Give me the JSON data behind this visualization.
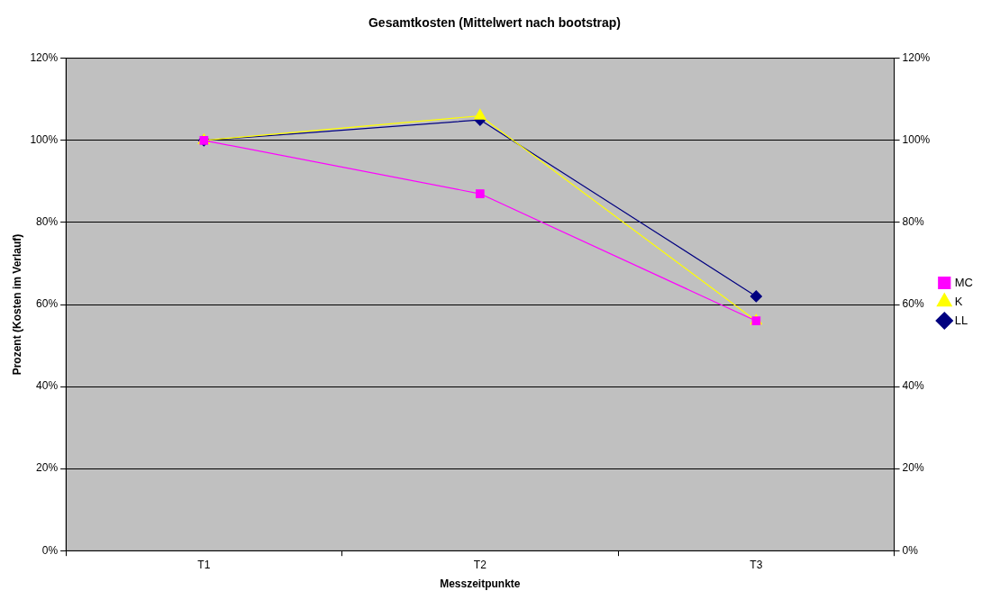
{
  "chart_data": {
    "type": "line",
    "title": "Gesamtkosten (Mittelwert nach bootstrap)",
    "xlabel": "Messzeitpunkte",
    "ylabel": "Prozent (Kosten im Verlauf)",
    "categories": [
      "T1",
      "T2",
      "T3"
    ],
    "series": [
      {
        "name": "MC",
        "color": "#ff00ff",
        "marker": "square",
        "values": [
          100,
          87,
          56
        ]
      },
      {
        "name": "K",
        "color": "#ffff00",
        "marker": "triangle",
        "values": [
          100,
          106,
          56
        ]
      },
      {
        "name": "LL",
        "color": "#000080",
        "marker": "diamond",
        "values": [
          100,
          105,
          62
        ]
      }
    ],
    "ylim": [
      0,
      120
    ],
    "yticks": [
      {
        "value": 0,
        "label": "0%"
      },
      {
        "value": 20,
        "label": "20%"
      },
      {
        "value": 40,
        "label": "40%"
      },
      {
        "value": 60,
        "label": "60%"
      },
      {
        "value": 80,
        "label": "80%"
      },
      {
        "value": 100,
        "label": "100%"
      },
      {
        "value": 120,
        "label": "120%"
      }
    ],
    "y2lim": [
      0,
      120
    ],
    "y2ticks": [
      {
        "value": 0,
        "label": "0%"
      },
      {
        "value": 20,
        "label": "20%"
      },
      {
        "value": 40,
        "label": "40%"
      },
      {
        "value": 60,
        "label": "60%"
      },
      {
        "value": 80,
        "label": "80%"
      },
      {
        "value": 100,
        "label": "100%"
      },
      {
        "value": 120,
        "label": "120%"
      }
    ],
    "grid": "y",
    "legend": "right",
    "line_style": "solid"
  }
}
